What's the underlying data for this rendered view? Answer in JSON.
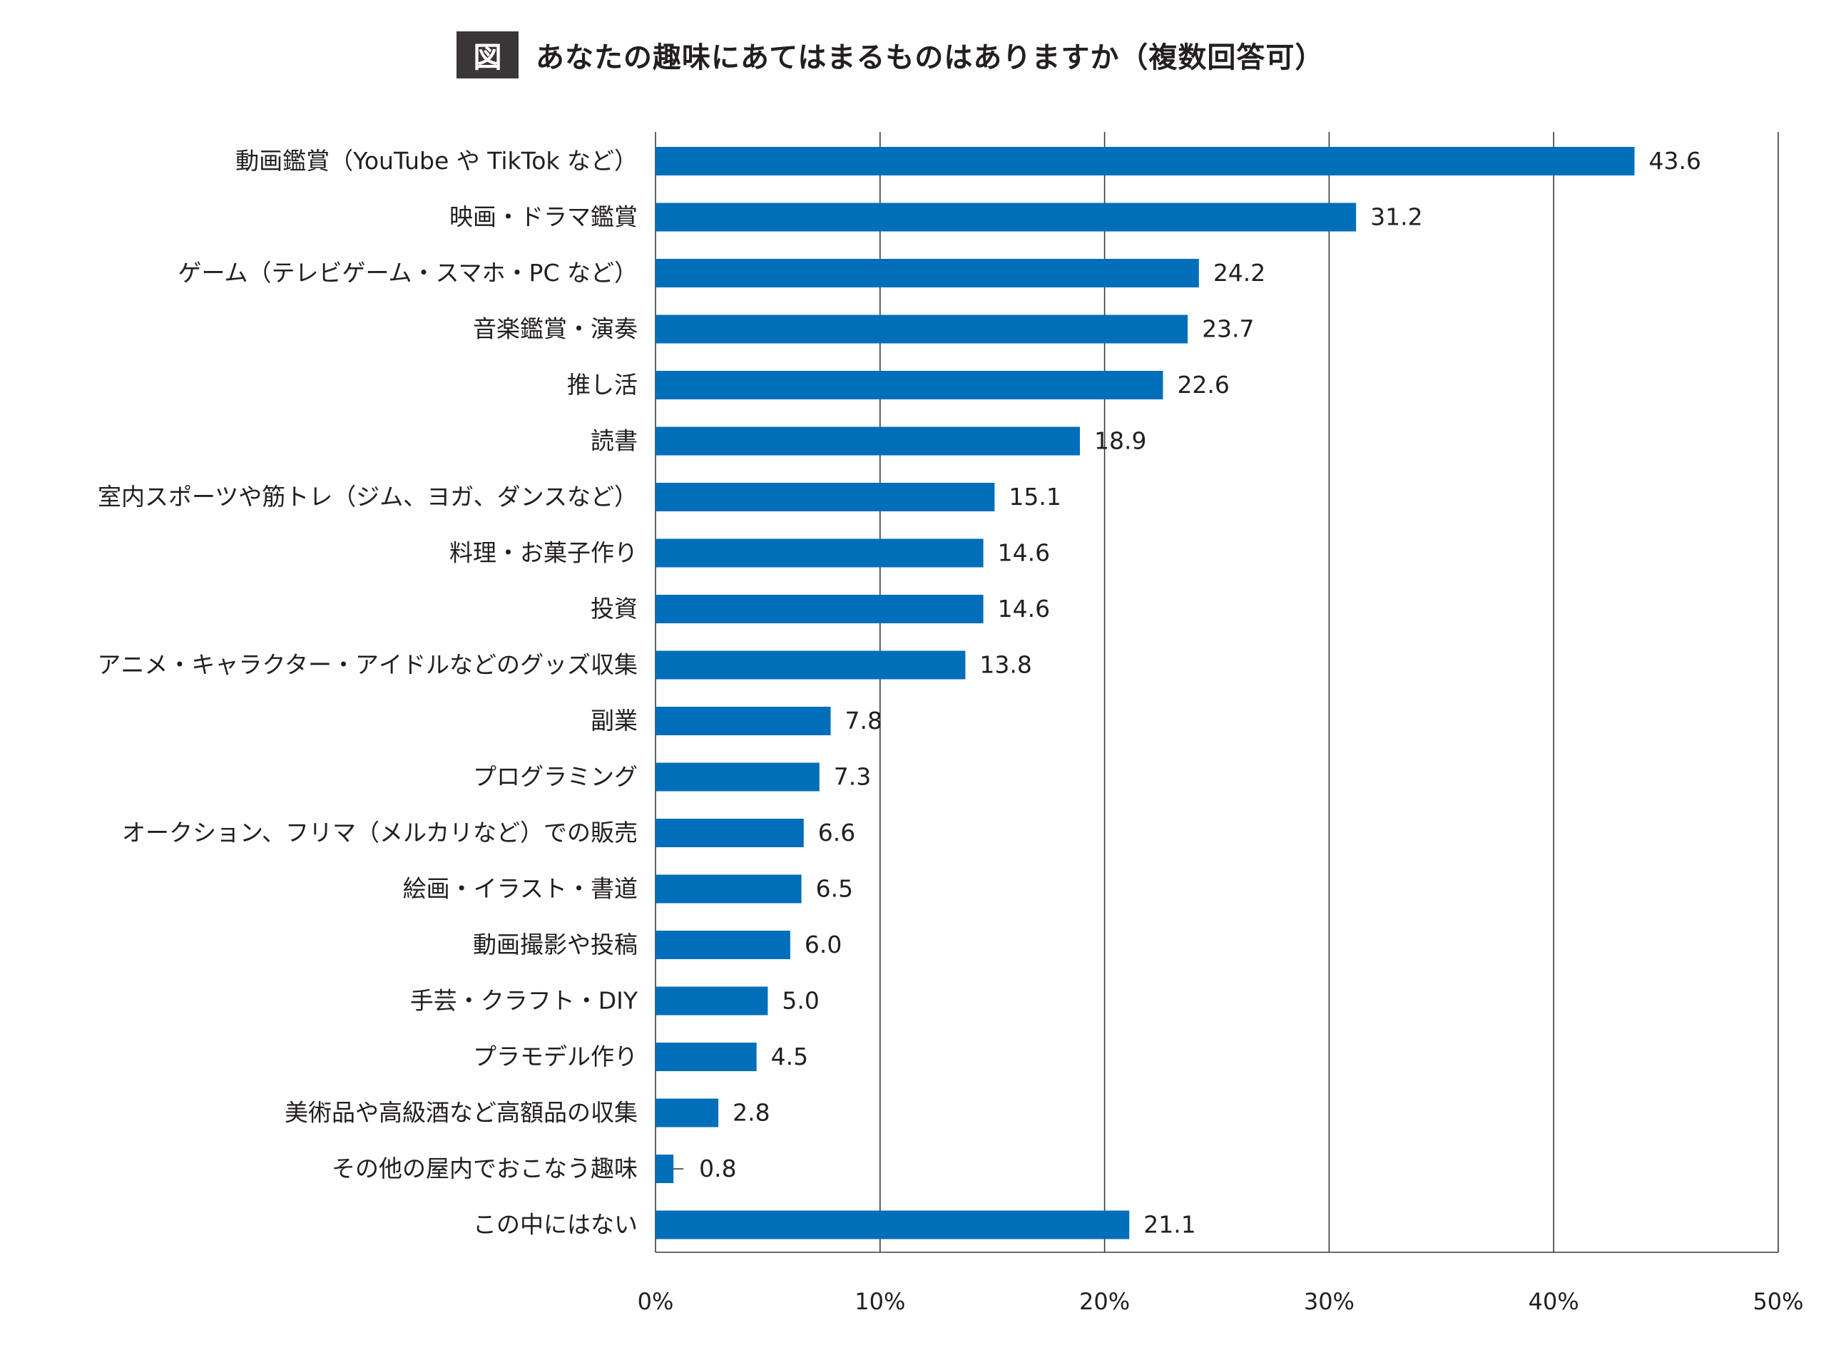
{
  "title": {
    "badge": "図",
    "text": "あなたの趣味にあてはまるものはありますか（複数回答可）"
  },
  "chart_data": {
    "type": "bar",
    "orientation": "horizontal",
    "title": "あなたの趣味にあてはまるものはありますか（複数回答可）",
    "categories": [
      "動画鑑賞（YouTube や TikTok など）",
      "映画・ドラマ鑑賞",
      "ゲーム（テレビゲーム・スマホ・PC など）",
      "音楽鑑賞・演奏",
      "推し活",
      "読書",
      "室内スポーツや筋トレ（ジム、ヨガ、ダンスなど）",
      "料理・お菓子作り",
      "投資",
      "アニメ・キャラクター・アイドルなどのグッズ収集",
      "副業",
      "プログラミング",
      "オークション、フリマ（メルカリなど）での販売",
      "絵画・イラスト・書道",
      "動画撮影や投稿",
      "手芸・クラフト・DIY",
      "プラモデル作り",
      "美術品や高級酒など高額品の収集",
      "その他の屋内でおこなう趣味",
      "この中にはない"
    ],
    "values": [
      43.6,
      31.2,
      24.2,
      23.7,
      22.6,
      18.9,
      15.1,
      14.6,
      14.6,
      13.8,
      7.8,
      7.3,
      6.6,
      6.5,
      6.0,
      5.0,
      4.5,
      2.8,
      0.8,
      21.1
    ],
    "value_labels": [
      "43.6",
      "31.2",
      "24.2",
      "23.7",
      "22.6",
      "18.9",
      "15.1",
      "14.6",
      "14.6",
      "13.8",
      "7.8",
      "7.3",
      "6.6",
      "6.5",
      "6.0",
      "5.0",
      "4.5",
      "2.8",
      "0.8",
      "21.1"
    ],
    "xlim": [
      0,
      50
    ],
    "x_ticks": [
      "0%",
      "10%",
      "20%",
      "30%",
      "40%",
      "50%"
    ],
    "x_tick_values": [
      0,
      10,
      20,
      30,
      40,
      50
    ],
    "grid": "vertical",
    "bar_color": "#006eb8",
    "xlabel": "",
    "ylabel": ""
  }
}
